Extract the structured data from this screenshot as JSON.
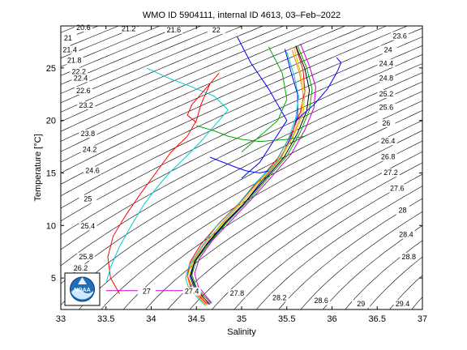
{
  "chart_data": {
    "type": "line",
    "title": "WMO ID 5904111, internal ID 4613, 03–Feb–2022",
    "xlabel": "Salinity",
    "ylabel": "Temperature [°C]",
    "xlim": [
      33,
      37
    ],
    "ylim": [
      2,
      29
    ],
    "xticks": [
      "33",
      "33.5",
      "34",
      "34.5",
      "35",
      "35.5",
      "36",
      "36.5",
      "37"
    ],
    "yticks": [
      "5",
      "10",
      "15",
      "20",
      "25"
    ],
    "grid": false,
    "legend": "none",
    "logo": "NOAA",
    "isopycnal_labels": [
      "20.6",
      "21",
      "21.2",
      "21.4",
      "21.6",
      "21.8",
      "22",
      "22.2",
      "22.4",
      "22.6",
      "23.2",
      "23.6",
      "23.8",
      "24",
      "24.2",
      "24.4",
      "24.6",
      "24.8",
      "25",
      "25.2",
      "25.4",
      "25.6",
      "25.8",
      "26",
      "26.2",
      "26.4",
      "26.6",
      "26.8",
      "27",
      "27.2",
      "27.4",
      "27.6",
      "27.8",
      "28",
      "28.2",
      "28.4",
      "28.6",
      "28.8",
      "29",
      "29.4"
    ],
    "isopycnal_positions": [
      {
        "s": 33.25,
        "t": 28.6
      },
      {
        "s": 33.08,
        "t": 27.6
      },
      {
        "s": 33.75,
        "t": 28.5
      },
      {
        "s": 33.1,
        "t": 26.5
      },
      {
        "s": 34.25,
        "t": 28.4
      },
      {
        "s": 33.15,
        "t": 25.5
      },
      {
        "s": 34.72,
        "t": 28.4
      },
      {
        "s": 33.2,
        "t": 24.4
      },
      {
        "s": 33.22,
        "t": 23.8
      },
      {
        "s": 33.25,
        "t": 22.6
      },
      {
        "s": 33.28,
        "t": 21.2
      },
      {
        "s": 36.75,
        "t": 27.8
      },
      {
        "s": 33.3,
        "t": 18.5
      },
      {
        "s": 36.62,
        "t": 26.5
      },
      {
        "s": 33.32,
        "t": 17.0
      },
      {
        "s": 36.6,
        "t": 25.2
      },
      {
        "s": 33.35,
        "t": 15.0
      },
      {
        "s": 36.6,
        "t": 23.8
      },
      {
        "s": 33.3,
        "t": 12.3
      },
      {
        "s": 36.6,
        "t": 22.3
      },
      {
        "s": 33.3,
        "t": 9.7
      },
      {
        "s": 36.6,
        "t": 21.0
      },
      {
        "s": 33.28,
        "t": 6.8
      },
      {
        "s": 36.6,
        "t": 19.5
      },
      {
        "s": 33.22,
        "t": 5.7
      },
      {
        "s": 36.62,
        "t": 17.8
      },
      {
        "s": 33.22,
        "t": 3.5
      },
      {
        "s": 36.62,
        "t": 16.3
      },
      {
        "s": 33.95,
        "t": 3.5
      },
      {
        "s": 36.65,
        "t": 14.8
      },
      {
        "s": 34.45,
        "t": 3.5
      },
      {
        "s": 36.72,
        "t": 13.3
      },
      {
        "s": 34.95,
        "t": 3.3
      },
      {
        "s": 36.78,
        "t": 11.2
      },
      {
        "s": 35.42,
        "t": 2.9
      },
      {
        "s": 36.82,
        "t": 8.9
      },
      {
        "s": 35.88,
        "t": 2.6
      },
      {
        "s": 36.85,
        "t": 6.8
      },
      {
        "s": 36.32,
        "t": 2.3
      },
      {
        "s": 36.78,
        "t": 2.3
      }
    ],
    "series": [
      {
        "color": "#0000ff",
        "s": [
          34.65,
          34.48,
          34.43,
          34.47,
          34.6,
          34.8,
          35.02,
          35.22,
          35.42,
          35.55,
          35.62,
          35.62,
          35.55,
          35.48
        ],
        "t": [
          2.5,
          4.0,
          5.2,
          6.3,
          8.0,
          10.0,
          12.0,
          14.2,
          16.2,
          18.5,
          20.5,
          22.5,
          24.5,
          26.8
        ]
      },
      {
        "color": "#ff0000",
        "s": [
          34.62,
          34.45,
          34.4,
          34.43,
          34.55,
          34.75,
          34.98,
          35.2,
          35.4,
          35.55,
          35.65,
          35.7,
          35.68,
          35.6
        ],
        "t": [
          2.5,
          4.0,
          5.2,
          6.5,
          8.2,
          10.2,
          12.2,
          14.4,
          16.4,
          18.7,
          20.8,
          22.8,
          24.8,
          27.0
        ]
      },
      {
        "color": "#00aa00",
        "s": [
          34.66,
          34.5,
          34.45,
          34.5,
          34.65,
          34.85,
          35.08,
          35.3,
          35.5,
          35.65,
          35.75,
          35.78,
          35.72,
          35.62
        ],
        "t": [
          2.6,
          4.1,
          5.3,
          6.7,
          8.4,
          10.4,
          12.4,
          14.6,
          16.6,
          18.9,
          21.0,
          23.0,
          25.0,
          27.1
        ]
      },
      {
        "color": "#00cccc",
        "s": [
          34.6,
          34.42,
          34.38,
          34.42,
          34.55,
          34.72,
          34.95,
          35.15,
          35.38,
          35.52,
          35.6,
          35.63,
          35.58,
          35.5
        ],
        "t": [
          2.4,
          3.9,
          5.0,
          6.2,
          7.9,
          9.9,
          11.9,
          14.0,
          16.0,
          18.3,
          20.3,
          22.3,
          24.3,
          26.5
        ]
      },
      {
        "color": "#cc00cc",
        "s": [
          34.67,
          34.52,
          34.48,
          34.53,
          34.68,
          34.9,
          35.12,
          35.35,
          35.55,
          35.7,
          35.8,
          35.82,
          35.75,
          35.65
        ],
        "t": [
          2.6,
          4.2,
          5.4,
          6.8,
          8.6,
          10.6,
          12.6,
          14.8,
          16.8,
          19.1,
          21.2,
          23.2,
          25.2,
          27.3
        ]
      },
      {
        "color": "#cccc00",
        "s": [
          34.63,
          34.47,
          34.42,
          34.46,
          34.58,
          34.78,
          35.0,
          35.22,
          35.43,
          35.58,
          35.68,
          35.7,
          35.65,
          35.58
        ],
        "t": [
          2.5,
          4.0,
          5.1,
          6.4,
          8.1,
          10.1,
          12.1,
          14.3,
          16.3,
          18.6,
          20.6,
          22.6,
          24.6,
          26.9
        ]
      },
      {
        "color": "#000000",
        "s": [
          34.64,
          34.49,
          34.44,
          34.48,
          34.62,
          34.82,
          35.05,
          35.27,
          35.47,
          35.62,
          35.72,
          35.75,
          35.7,
          35.6
        ],
        "t": [
          2.5,
          4.1,
          5.2,
          6.6,
          8.3,
          10.3,
          12.3,
          14.5,
          16.5,
          18.8,
          20.9,
          22.9,
          24.9,
          27.1
        ]
      },
      {
        "color": "#ff8800",
        "s": [
          34.61,
          34.44,
          34.4,
          34.44,
          34.57,
          34.76,
          34.97,
          35.18,
          35.4,
          35.56,
          35.66,
          35.68,
          35.64,
          35.56
        ],
        "t": [
          2.4,
          3.9,
          5.1,
          6.3,
          8.0,
          10.0,
          12.0,
          14.1,
          16.1,
          18.4,
          20.5,
          22.5,
          24.5,
          26.7
        ]
      },
      {
        "color": "#0000ff",
        "s": [
          35.0,
          35.2,
          35.35,
          35.5,
          35.3,
          35.1,
          34.95
        ],
        "t": [
          14.5,
          16.0,
          18.0,
          20.0,
          23.0,
          25.5,
          28.0
        ]
      },
      {
        "color": "#0000ff",
        "s": [
          35.6,
          35.8,
          35.95,
          36.05,
          36.1,
          36.05
        ],
        "t": [
          20.0,
          21.5,
          23.0,
          24.5,
          25.5,
          26.0
        ]
      },
      {
        "color": "#00aa00",
        "s": [
          35.0,
          35.2,
          35.4,
          35.5,
          35.45,
          35.3
        ],
        "t": [
          17.0,
          18.5,
          20.0,
          22.0,
          24.5,
          27.0
        ]
      },
      {
        "color": "#ff0000",
        "s": [
          33.65,
          33.55,
          33.52,
          33.58,
          33.72,
          33.88,
          34.05,
          34.22,
          34.4,
          34.5,
          34.55,
          34.6,
          34.65
        ],
        "t": [
          3.5,
          5.0,
          7.0,
          9.0,
          11.0,
          13.0,
          15.0,
          17.0,
          18.5,
          20.0,
          21.5,
          22.5,
          23.5
        ]
      },
      {
        "color": "#00cccc",
        "s": [
          33.5,
          33.55,
          33.65,
          33.78,
          33.92,
          34.05,
          34.2,
          34.38,
          34.55,
          34.7,
          34.85,
          34.7,
          34.45,
          34.2,
          33.95
        ],
        "t": [
          4.5,
          6.0,
          8.0,
          10.0,
          12.0,
          13.5,
          15.0,
          16.5,
          18.0,
          19.5,
          21.0,
          22.3,
          23.2,
          24.0,
          25.0
        ]
      },
      {
        "color": "#cc00cc",
        "s": [
          33.5,
          34.0,
          34.5,
          34.65
        ],
        "t": [
          3.8,
          3.8,
          3.8,
          2.5
        ]
      },
      {
        "color": "#00aa00",
        "s": [
          34.5,
          34.7,
          34.85,
          35.0,
          35.2,
          35.5,
          35.7
        ],
        "t": [
          19.5,
          19.0,
          18.5,
          18.2,
          18.0,
          18.2,
          18.5
        ]
      },
      {
        "color": "#0000ff",
        "s": [
          34.65,
          34.8,
          34.95,
          35.05,
          35.2,
          35.3
        ],
        "t": [
          16.5,
          16.0,
          15.5,
          15.2,
          15.0,
          15.2
        ]
      },
      {
        "color": "#ff0000",
        "s": [
          34.5,
          34.4,
          34.45,
          34.55,
          34.65,
          34.75
        ],
        "t": [
          19.8,
          20.5,
          21.5,
          22.5,
          23.5,
          24.5
        ]
      }
    ]
  }
}
